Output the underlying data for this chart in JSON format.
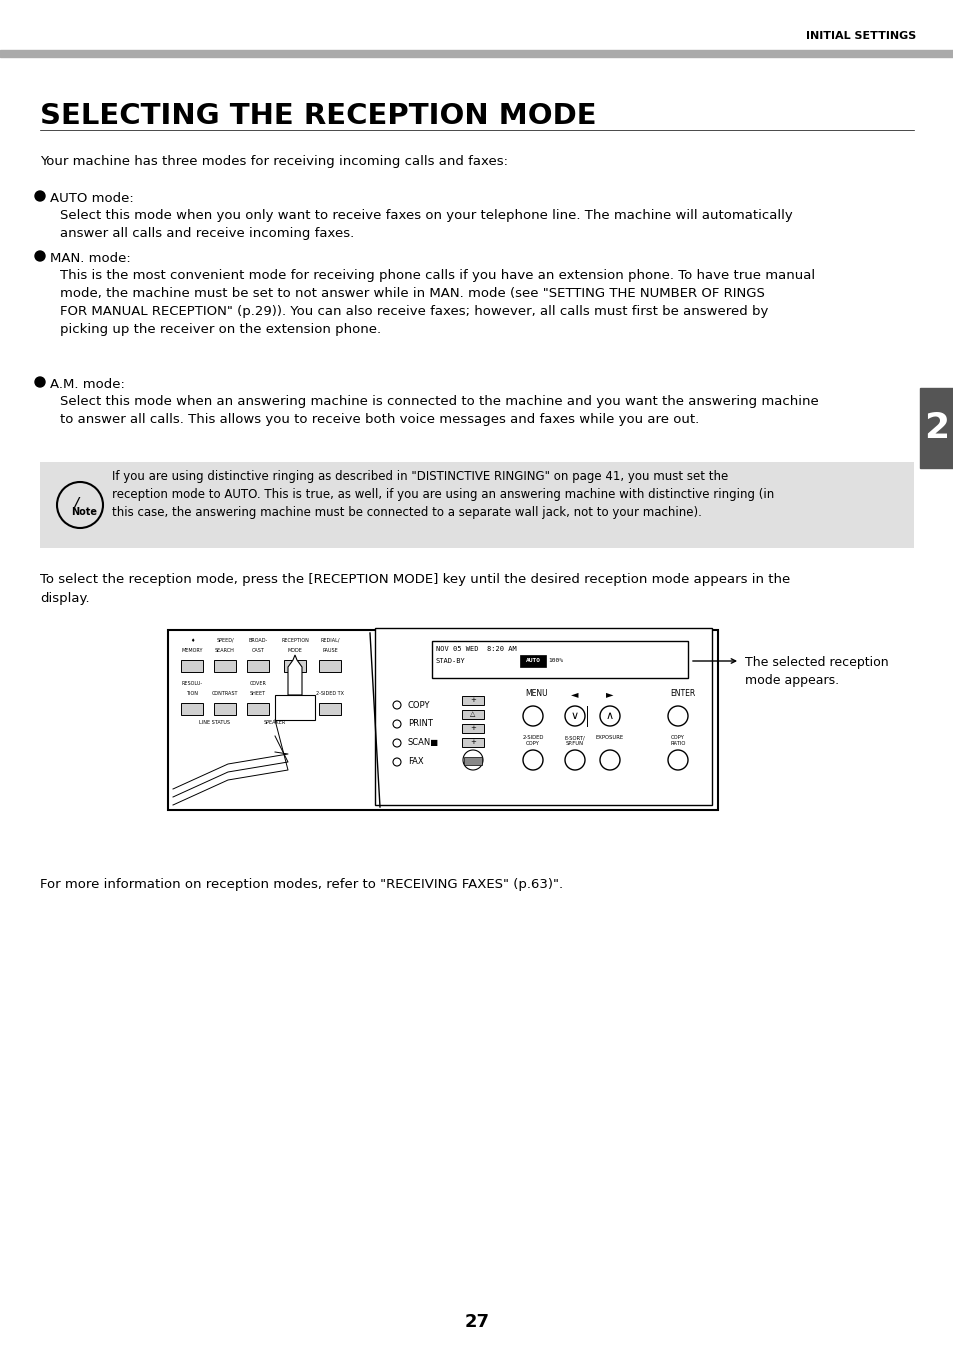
{
  "page_header": "INITIAL SETTINGS",
  "title": "SELECTING THE RECEPTION MODE",
  "intro": "Your machine has three modes for receiving incoming calls and faxes:",
  "mode1_name": "AUTO mode:",
  "mode1_text": "Select this mode when you only want to receive faxes on your telephone line. The machine will automatically\nanswer all calls and receive incoming faxes.",
  "mode2_name": "MAN. mode:",
  "mode2_text": "This is the most convenient mode for receiving phone calls if you have an extension phone. To have true manual\nmode, the machine must be set to not answer while in MAN. mode (see \"SETTING THE NUMBER OF RINGS\nFOR MANUAL RECEPTION\" (p.29)). You can also receive faxes; however, all calls must first be answered by\npicking up the receiver on the extension phone.",
  "mode3_name": "A.M. mode:",
  "mode3_text": "Select this mode when an answering machine is connected to the machine and you want the answering machine\nto answer all calls. This allows you to receive both voice messages and faxes while you are out.",
  "note_text": "If you are using distinctive ringing as described in \"DISTINCTIVE RINGING\" on page 41, you must set the\nreception mode to AUTO. This is true, as well, if you are using an answering machine with distinctive ringing (in\nthis case, the answering machine must be connected to a separate wall jack, not to your machine).",
  "instruction_line1": "To select the reception mode, press the [RECEPTION MODE] key until the desired reception mode appears in the",
  "instruction_line2": "display.",
  "caption": "The selected reception\nmode appears.",
  "footer_text": "For more information on reception modes, refer to \"RECEIVING FAXES\" (p.63)\".",
  "page_number": "27",
  "section_number": "2",
  "header_bar_color": "#aaaaaa",
  "note_bg_color": "#e0e0e0",
  "tab_color": "#555555",
  "bg_color": "#ffffff"
}
